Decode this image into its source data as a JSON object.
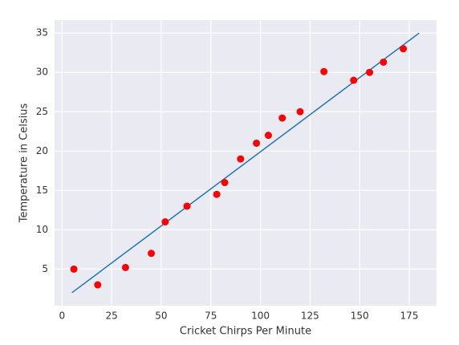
{
  "chart_data": {
    "type": "scatter",
    "xlabel": "Cricket Chirps Per Minute",
    "ylabel": "Temperature in Celsius",
    "x": [
      6,
      18,
      32,
      45,
      52,
      63,
      78,
      82,
      90,
      98,
      104,
      111,
      120,
      132,
      147,
      155,
      162,
      172
    ],
    "y": [
      5,
      3,
      5.2,
      7,
      11,
      13,
      14.5,
      16,
      19,
      21,
      22,
      24.2,
      25,
      30.1,
      29,
      30,
      31.3,
      33
    ],
    "color": "#ff0000",
    "fit_line": {
      "x": [
        5,
        180
      ],
      "y": [
        2,
        35
      ],
      "color": "#1f77b4"
    },
    "xlim": [
      -3.75,
      188.75
    ],
    "ylim": [
      0.35,
      36.65
    ],
    "xticks": [
      0,
      25,
      50,
      75,
      100,
      125,
      150,
      175
    ],
    "yticks": [
      5,
      10,
      15,
      20,
      25,
      30,
      35
    ],
    "grid": true,
    "background": "#eaeaf2"
  }
}
